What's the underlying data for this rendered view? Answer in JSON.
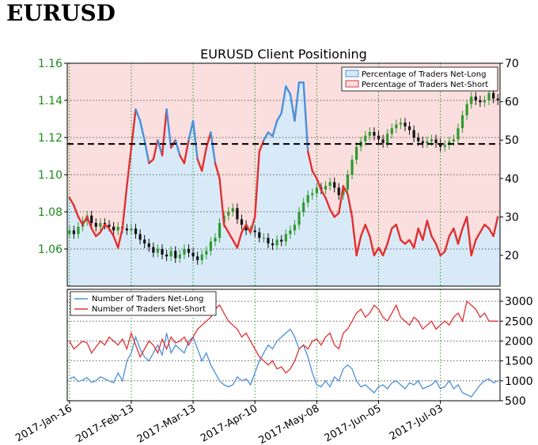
{
  "page_title": "EURUSD",
  "chart_data": {
    "type": "line",
    "title": "EURUSD Client Positioning",
    "x_ticks": [
      "2017-Jan-16",
      "2017-Feb-13",
      "2017-Mar-13",
      "2017-Apr-10",
      "2017-May-08",
      "2017-Jun-05",
      "2017-Jul-03"
    ],
    "top_panel": {
      "left_axis": {
        "label": "",
        "ylim": [
          1.04,
          1.16
        ],
        "ticks": [
          "1.06",
          "1.08",
          "1.10",
          "1.12",
          "1.14",
          "1.16"
        ]
      },
      "right_axis": {
        "label": "",
        "ylim": [
          12,
          70
        ],
        "ticks": [
          "20",
          "30",
          "40",
          "50",
          "60",
          "70"
        ]
      },
      "reference_line": 49,
      "legend": {
        "placement": "top-right",
        "items": [
          "Percentage of Traders Net-Long",
          "Percentage of Traders Net-Short"
        ]
      },
      "price_close": [
        1.07,
        1.068,
        1.072,
        1.075,
        1.078,
        1.074,
        1.072,
        1.074,
        1.073,
        1.072,
        1.07,
        1.072,
        1.071,
        1.07,
        1.071,
        1.068,
        1.065,
        1.063,
        1.061,
        1.058,
        1.06,
        1.057,
        1.056,
        1.059,
        1.055,
        1.057,
        1.06,
        1.058,
        1.056,
        1.054,
        1.057,
        1.059,
        1.064,
        1.066,
        1.074,
        1.078,
        1.08,
        1.082,
        1.076,
        1.073,
        1.07,
        1.07,
        1.069,
        1.066,
        1.066,
        1.063,
        1.062,
        1.065,
        1.064,
        1.068,
        1.07,
        1.073,
        1.08,
        1.085,
        1.089,
        1.09,
        1.093,
        1.092,
        1.094,
        1.096,
        1.093,
        1.089,
        1.092,
        1.1,
        1.108,
        1.115,
        1.118,
        1.121,
        1.123,
        1.121,
        1.119,
        1.117,
        1.122,
        1.125,
        1.127,
        1.128,
        1.126,
        1.124,
        1.12,
        1.118,
        1.117,
        1.118,
        1.119,
        1.117,
        1.115,
        1.116,
        1.118,
        1.119,
        1.125,
        1.132,
        1.138,
        1.142,
        1.14,
        1.139,
        1.14,
        1.144,
        1.141,
        1.14
      ],
      "pct_net_long": [
        35,
        33,
        30,
        28,
        30,
        27,
        25,
        26,
        28,
        27,
        25,
        22,
        27,
        38,
        48,
        58,
        55,
        50,
        44,
        45,
        50,
        46,
        58,
        48,
        50,
        46,
        44,
        50,
        55,
        45,
        42,
        48,
        52,
        44,
        40,
        28,
        26,
        24,
        22,
        26,
        28,
        26,
        30,
        47,
        50,
        52,
        51,
        55,
        57,
        64,
        62,
        55,
        65,
        65,
        47,
        42,
        40,
        37,
        35,
        32,
        30,
        31,
        38,
        36,
        30,
        20,
        25,
        28,
        25,
        20,
        22,
        20,
        23,
        27,
        28,
        24,
        23,
        24,
        22,
        27,
        24,
        29,
        25,
        23,
        20,
        21,
        25,
        27,
        23,
        27,
        30,
        20,
        24,
        26,
        28,
        27,
        25,
        30
      ],
      "pct_net_short": [
        65,
        67,
        70,
        72,
        70,
        73,
        75,
        74,
        72,
        73,
        75,
        78,
        73,
        62,
        52,
        42,
        45,
        50,
        56,
        55,
        50,
        54,
        42,
        52,
        50,
        54,
        56,
        50,
        45,
        55,
        58,
        52,
        48,
        56,
        60,
        72,
        74,
        76,
        78,
        74,
        72,
        74,
        70,
        53,
        50,
        48,
        49,
        45,
        43,
        36,
        38,
        45,
        35,
        35,
        53,
        58,
        60,
        63,
        65,
        68,
        70,
        69,
        62,
        64,
        70,
        80,
        75,
        72,
        75,
        80,
        78,
        80,
        77,
        73,
        72,
        76,
        77,
        76,
        78,
        73,
        76,
        71,
        75,
        77,
        80,
        79,
        75,
        73,
        77,
        73,
        70,
        80,
        76,
        74,
        72,
        73,
        75,
        70
      ]
    },
    "bottom_panel": {
      "right_axis": {
        "label": "",
        "ylim": [
          500,
          3300
        ],
        "ticks": [
          "500",
          "1000",
          "1500",
          "2000",
          "2500",
          "3000"
        ]
      },
      "legend": {
        "placement": "top-left",
        "items": [
          "Number of Traders Net-Long",
          "Number of Traders Net-Short"
        ]
      },
      "net_long": [
        1050,
        1100,
        980,
        1020,
        1080,
        960,
        1000,
        1100,
        1050,
        1000,
        950,
        1200,
        1000,
        1500,
        1700,
        2100,
        1800,
        1600,
        1500,
        1700,
        1900,
        1650,
        2200,
        1700,
        1900,
        1800,
        1700,
        2000,
        2100,
        1800,
        1500,
        1700,
        1400,
        1200,
        1000,
        900,
        850,
        900,
        1100,
        1000,
        1050,
        900,
        1200,
        1500,
        1700,
        1900,
        1800,
        2000,
        2100,
        2200,
        2300,
        2100,
        1800,
        1900,
        1600,
        1200,
        900,
        850,
        1000,
        850,
        1100,
        1000,
        1300,
        1400,
        1300,
        1000,
        850,
        900,
        800,
        700,
        850,
        900,
        800,
        950,
        1000,
        900,
        800,
        950,
        900,
        1000,
        800,
        850,
        900,
        1000,
        800,
        850,
        1000,
        800,
        900,
        700,
        650,
        600,
        750,
        900,
        1000,
        1050,
        950,
        1000
      ],
      "net_short": [
        2000,
        1800,
        1900,
        2000,
        1950,
        1700,
        1850,
        2000,
        1900,
        2100,
        2000,
        1900,
        2050,
        1800,
        2200,
        1900,
        1600,
        1800,
        2000,
        1900,
        1700,
        2050,
        1800,
        2100,
        1950,
        2000,
        2100,
        1900,
        2100,
        2300,
        2400,
        2500,
        2600,
        2800,
        2900,
        2700,
        2500,
        2400,
        2300,
        2100,
        2200,
        2000,
        1800,
        1600,
        1500,
        1400,
        1500,
        1300,
        1350,
        1200,
        1300,
        1500,
        1800,
        1900,
        1800,
        2000,
        2050,
        1900,
        2100,
        2200,
        1900,
        1800,
        2200,
        2300,
        2500,
        2700,
        2800,
        2600,
        2700,
        2900,
        2800,
        2600,
        2500,
        2700,
        2900,
        2600,
        2500,
        2400,
        2600,
        2500,
        2300,
        2400,
        2500,
        2300,
        2400,
        2500,
        2400,
        2600,
        2700,
        2500,
        3000,
        2900,
        2800,
        2600,
        2700,
        2500,
        2500,
        2500
      ]
    }
  },
  "colors": {
    "long": "#4a90d9",
    "short": "#e03030",
    "long_fill": "#d8eaf8",
    "short_fill": "#fbdede",
    "candle_up": "#2e9b2e",
    "candle_down": "#111111",
    "grid": "#1a8a1a"
  }
}
